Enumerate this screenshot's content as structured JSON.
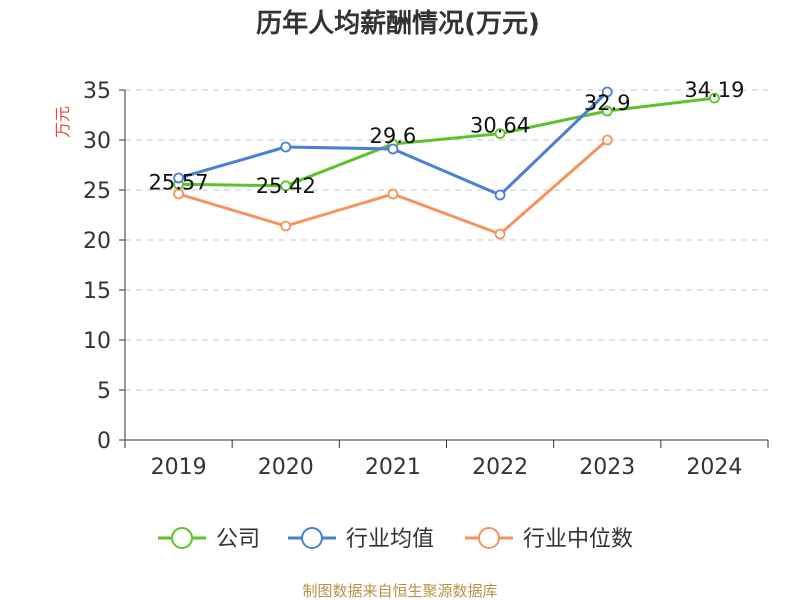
{
  "chart_data": {
    "type": "line",
    "title": "历年人均薪酬情况(万元)",
    "ylabel": "万元",
    "xlabel": "",
    "categories": [
      "2019",
      "2020",
      "2021",
      "2022",
      "2023",
      "2024"
    ],
    "ylim": [
      0,
      35
    ],
    "yticks": [
      0,
      5,
      10,
      15,
      20,
      25,
      30,
      35
    ],
    "grid": true,
    "legend_position": "bottom",
    "series": [
      {
        "name": "公司",
        "color": "#5cc22a",
        "values": [
          25.57,
          25.42,
          29.6,
          30.64,
          32.9,
          34.19
        ],
        "labels": [
          "25.57",
          "25.42",
          "29.6",
          "30.64",
          "32.9",
          "34.19"
        ]
      },
      {
        "name": "行业均值",
        "color": "#4a7fd6",
        "values": [
          26.2,
          29.3,
          29.1,
          24.5,
          34.8,
          null
        ]
      },
      {
        "name": "行业中位数",
        "color": "#f5935a",
        "values": [
          24.6,
          21.4,
          24.6,
          20.6,
          30.0,
          null
        ]
      }
    ]
  },
  "source": "制图数据来自恒生聚源数据库"
}
